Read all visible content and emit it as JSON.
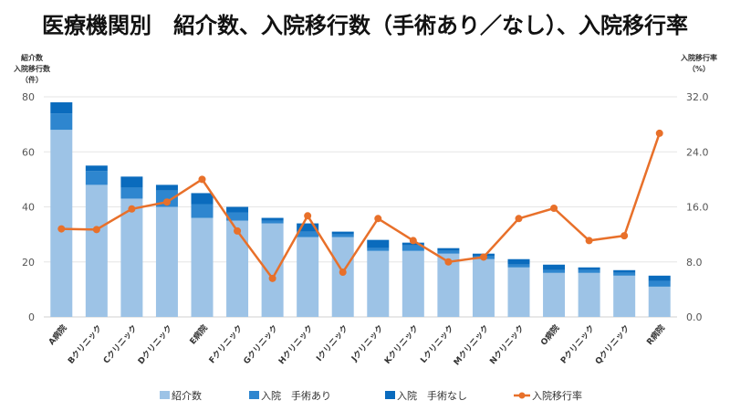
{
  "chart_data": {
    "type": "bar",
    "title": "医療機関別　紹介数、入院移行数（手術あり／なし）、入院移行率",
    "ylabel_left": [
      "紹介数",
      "入院移行数",
      "（件）"
    ],
    "ylabel_right": [
      "入院移行率",
      "（%）"
    ],
    "ylim_left": [
      0,
      80
    ],
    "yticks_left": [
      "0",
      "20",
      "40",
      "60",
      "80"
    ],
    "ylim_right": [
      0,
      32
    ],
    "yticks_right": [
      "0.0",
      "8.0",
      "16.0",
      "24.0",
      "32.0"
    ],
    "grid": true,
    "legend_position": "bottom",
    "stacked": true,
    "categories": [
      "A病院",
      "Bクリニック",
      "Cクリニック",
      "Dクリニック",
      "E病院",
      "Fクリニック",
      "Gクリニック",
      "Hクリニック",
      "Iクリニック",
      "Jクリニック",
      "Kクリニック",
      "Lクリニック",
      "Mクリニック",
      "Nクリニック",
      "O病院",
      "Pクリニック",
      "Qクリニック",
      "R病院"
    ],
    "series": [
      {
        "name": "紹介数",
        "type": "bar",
        "axis": "left",
        "color": "#9dc3e6",
        "values": [
          68,
          48,
          43,
          40,
          36,
          35,
          34,
          29,
          29,
          24,
          24,
          23,
          21,
          18,
          16,
          16,
          15,
          11
        ]
      },
      {
        "name": "入院　手術あり",
        "type": "bar",
        "axis": "left",
        "color": "#2e86cf",
        "values": [
          6,
          5,
          4,
          6,
          5,
          3,
          1,
          2,
          1,
          1,
          2,
          1,
          1,
          1,
          1,
          1,
          1,
          2
        ]
      },
      {
        "name": "入院　手術なし",
        "type": "bar",
        "axis": "left",
        "color": "#0a6bbd",
        "values": [
          4,
          2,
          4,
          2,
          4,
          2,
          1,
          3,
          1,
          3,
          1,
          1,
          1,
          2,
          2,
          1,
          1,
          2
        ]
      },
      {
        "name": "入院移行率",
        "type": "line",
        "axis": "right",
        "color": "#e8702a",
        "values": [
          12.8,
          12.7,
          15.7,
          16.7,
          20.0,
          12.5,
          5.6,
          14.7,
          6.5,
          14.3,
          11.1,
          8.0,
          8.7,
          14.3,
          15.8,
          11.1,
          11.8,
          26.7
        ]
      }
    ]
  }
}
